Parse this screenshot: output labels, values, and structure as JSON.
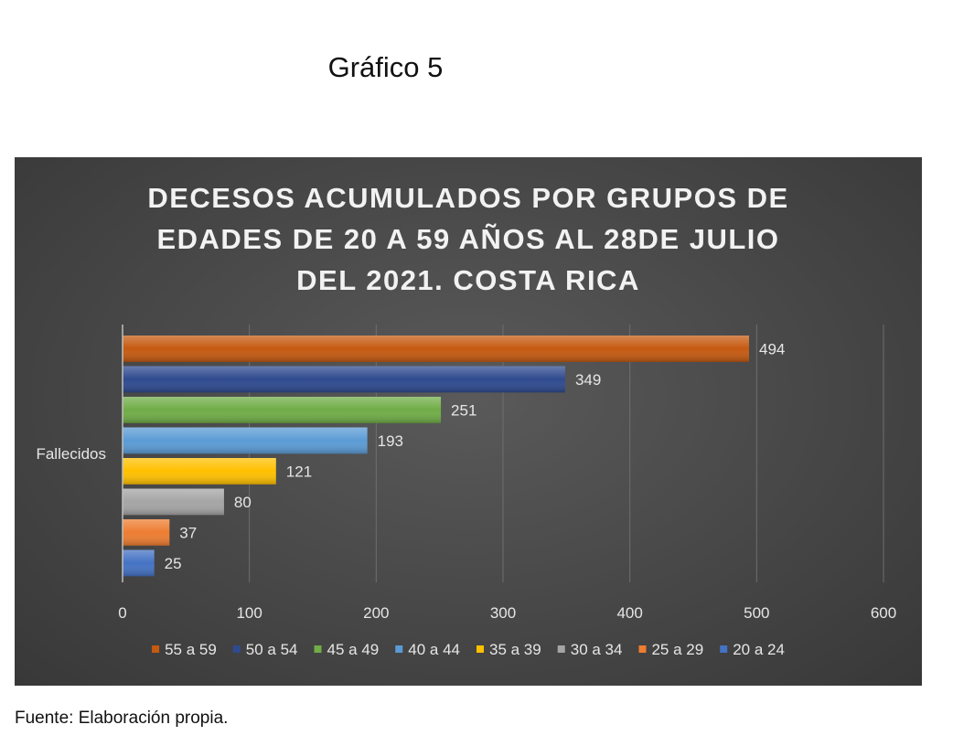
{
  "caption": "Gráfico 5",
  "source": "Fuente: Elaboración propia.",
  "chart_data": {
    "type": "bar",
    "orientation": "horizontal",
    "title": "DECESOS ACUMULADOS POR GRUPOS DE EDADES DE 20 A 59 AÑOS AL 28DE JULIO DEL 2021. COSTA RICA",
    "title_lines": [
      "DECESOS ACUMULADOS POR GRUPOS DE",
      "EDADES DE 20 A 59 AÑOS AL 28DE JULIO",
      "DEL 2021. COSTA RICA"
    ],
    "categories": [
      "Fallecidos"
    ],
    "xlim": [
      0,
      600
    ],
    "xticks": [
      0,
      100,
      200,
      300,
      400,
      500,
      600
    ],
    "grid": true,
    "legend_position": "bottom",
    "series": [
      {
        "name": "55 a 59",
        "values": [
          494
        ],
        "color": "#c55a11"
      },
      {
        "name": "50 a 54",
        "values": [
          349
        ],
        "color": "#2f4a8f"
      },
      {
        "name": "45 a 49",
        "values": [
          251
        ],
        "color": "#70ad47"
      },
      {
        "name": "40 a 44",
        "values": [
          193
        ],
        "color": "#5b9bd5"
      },
      {
        "name": "35 a 39",
        "values": [
          121
        ],
        "color": "#ffc000"
      },
      {
        "name": "30 a 34",
        "values": [
          80
        ],
        "color": "#a5a5a5"
      },
      {
        "name": "25 a 29",
        "values": [
          37
        ],
        "color": "#ed7d31"
      },
      {
        "name": "20 a 24",
        "values": [
          25
        ],
        "color": "#4472c4"
      }
    ]
  }
}
